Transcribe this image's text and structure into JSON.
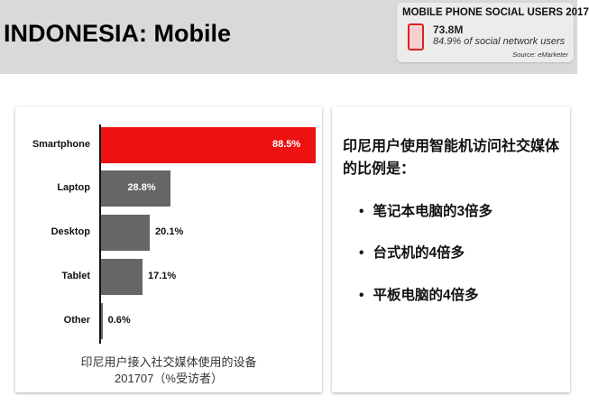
{
  "header": {
    "title": "INDONESIA: Mobile"
  },
  "infobox": {
    "heading": "MOBILE PHONE SOCIAL USERS 2017",
    "value": "73.8M",
    "subtitle": "84.9% of social network users",
    "source": "Source: eMarketer",
    "icon": "phone-icon"
  },
  "chart_data": {
    "type": "bar",
    "orientation": "horizontal",
    "categories": [
      "Smartphone",
      "Laptop",
      "Desktop",
      "Tablet",
      "Other"
    ],
    "values": [
      88.5,
      28.8,
      20.1,
      17.1,
      0.6
    ],
    "labels": [
      "88.5%",
      "28.8%",
      "20.1%",
      "17.1%",
      "0.6%"
    ],
    "colors": [
      "#ee1111",
      "#666666",
      "#666666",
      "#666666",
      "#666666"
    ],
    "xlim": [
      0,
      88.5
    ],
    "grid": false,
    "caption_line1": "印尼用户接入社交媒体使用的设备",
    "caption_line2": "201707（%受访者）"
  },
  "side": {
    "heading": "印尼用户使用智能机访问社交媒体的比例是：",
    "bullets": [
      "笔记本电脑的3倍多",
      "台式机的4倍多",
      "平板电脑的4倍多"
    ]
  }
}
